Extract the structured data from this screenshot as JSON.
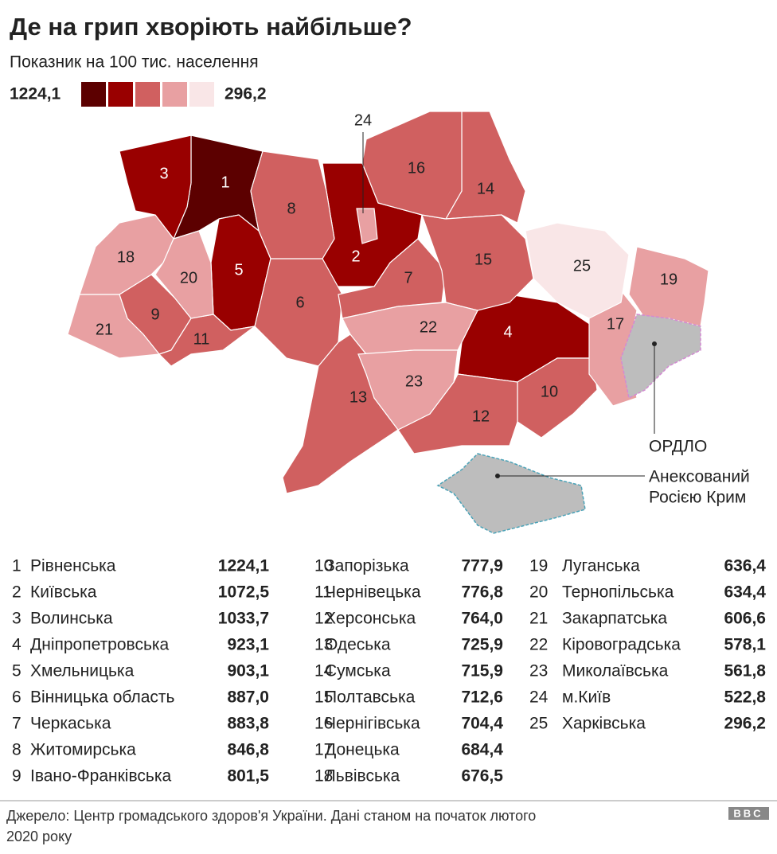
{
  "header": {
    "title": "Де на грип хворіють найбільше?",
    "subtitle": "Показник на 100 тис. населення"
  },
  "legend": {
    "max_label": "1224,1",
    "min_label": "296,2",
    "colors": [
      "#5c0000",
      "#990000",
      "#d06060",
      "#e8a0a2",
      "#f9e6e7"
    ]
  },
  "regions": [
    {
      "num": "1",
      "name": "Рівненська",
      "value": "1224,1",
      "color": "#5c0000"
    },
    {
      "num": "2",
      "name": "Київська",
      "value": "1072,5",
      "color": "#990000"
    },
    {
      "num": "3",
      "name": "Волинська",
      "value": "1033,7",
      "color": "#990000"
    },
    {
      "num": "4",
      "name": "Дніпропетровська",
      "value": "923,1",
      "color": "#990000"
    },
    {
      "num": "5",
      "name": "Хмельницька",
      "value": "903,1",
      "color": "#990000"
    },
    {
      "num": "6",
      "name": "Вінницька область",
      "value": "887,0",
      "color": "#d06060"
    },
    {
      "num": "7",
      "name": "Черкаська",
      "value": "883,8",
      "color": "#d06060"
    },
    {
      "num": "8",
      "name": "Житомирська",
      "value": "846,8",
      "color": "#d06060"
    },
    {
      "num": "9",
      "name": "Івано-Франківська",
      "value": "801,5",
      "color": "#d06060"
    },
    {
      "num": "10",
      "name": "Запорізька",
      "value": "777,9",
      "color": "#d06060"
    },
    {
      "num": "11",
      "name": "Чернівецька",
      "value": "776,8",
      "color": "#d06060"
    },
    {
      "num": "12",
      "name": "Херсонська",
      "value": "764,0",
      "color": "#d06060"
    },
    {
      "num": "13",
      "name": "Одеська",
      "value": "725,9",
      "color": "#d06060"
    },
    {
      "num": "14",
      "name": "Сумська",
      "value": "715,9",
      "color": "#d06060"
    },
    {
      "num": "15",
      "name": "Полтавська",
      "value": "712,6",
      "color": "#d06060"
    },
    {
      "num": "16",
      "name": "Чернігівська",
      "value": "704,4",
      "color": "#d06060"
    },
    {
      "num": "17",
      "name": "Донецька",
      "value": "684,4",
      "color": "#e8a0a2"
    },
    {
      "num": "18",
      "name": "Львівська",
      "value": "676,5",
      "color": "#e8a0a2"
    },
    {
      "num": "19",
      "name": "Луганська",
      "value": "636,4",
      "color": "#e8a0a2"
    },
    {
      "num": "20",
      "name": "Тернопільська",
      "value": "634,4",
      "color": "#e8a0a2"
    },
    {
      "num": "21",
      "name": "Закарпатська",
      "value": "606,6",
      "color": "#e8a0a2"
    },
    {
      "num": "22",
      "name": "Кіровоградська",
      "value": "578,1",
      "color": "#e8a0a2"
    },
    {
      "num": "23",
      "name": "Миколаївська",
      "value": "561,8",
      "color": "#e8a0a2"
    },
    {
      "num": "24",
      "name": "м.Київ",
      "value": "522,8",
      "color": "#e8a0a2"
    },
    {
      "num": "25",
      "name": "Харківська",
      "value": "296,2",
      "color": "#f9e6e7"
    }
  ],
  "annotations": {
    "ordlo": "ОРДЛО",
    "crimea_1": "Анексований",
    "crimea_2": "Росією Крим"
  },
  "footer": {
    "source_1": "Джерело: Центр громадського здоров'я України. Дані станом на початок лютого",
    "source_2": "2020 року",
    "logo": "BBC"
  }
}
